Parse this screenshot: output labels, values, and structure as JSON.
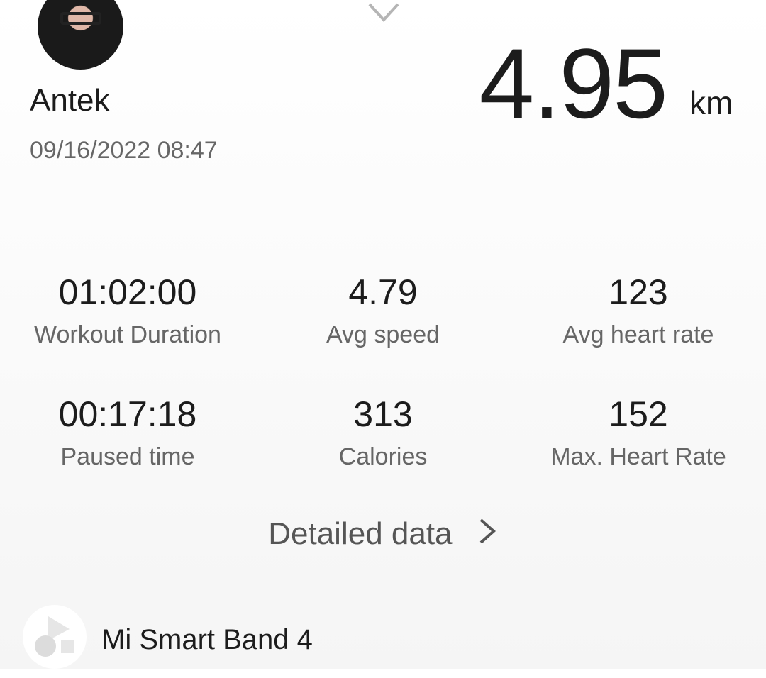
{
  "user": {
    "name": "Antek",
    "datetime": "09/16/2022 08:47"
  },
  "distance": {
    "value": "4.95",
    "unit": "km"
  },
  "stats": [
    {
      "value": "01:02:00",
      "label": "Workout Duration"
    },
    {
      "value": "4.79",
      "label": "Avg speed"
    },
    {
      "value": "123",
      "label": "Avg heart rate"
    },
    {
      "value": "00:17:18",
      "label": "Paused time"
    },
    {
      "value": "313",
      "label": "Calories"
    },
    {
      "value": "152",
      "label": "Max. Heart Rate"
    }
  ],
  "detailed_link": "Detailed data",
  "device": {
    "name": "Mi Smart Band 4",
    "icon": "device-shapes-icon"
  }
}
